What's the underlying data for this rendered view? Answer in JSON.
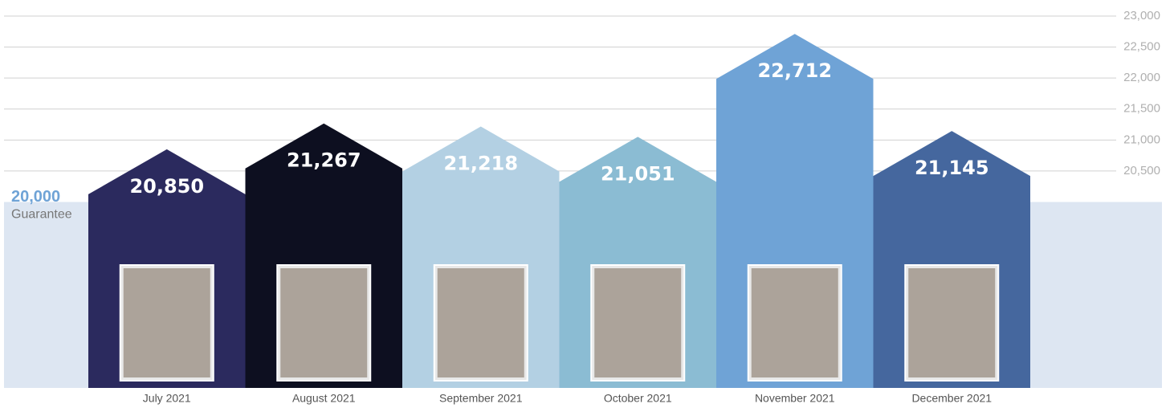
{
  "chart_data": {
    "type": "bar",
    "categories": [
      "July 2021",
      "August 2021",
      "September 2021",
      "October 2021",
      "November 2021",
      "December 2021"
    ],
    "values": [
      20850,
      21267,
      21218,
      21051,
      22712,
      21145
    ],
    "value_labels": [
      "20,850",
      "21,267",
      "21,218",
      "21,051",
      "22,712",
      "21,145"
    ],
    "colors": [
      "#2b2a5e",
      "#0d0f20",
      "#b3d0e3",
      "#8bbcd3",
      "#6fa3d6",
      "#45679e"
    ],
    "ylim": [
      17000,
      23000
    ],
    "yticks": [
      {
        "value": 20500,
        "label": "20,500"
      },
      {
        "value": 21000,
        "label": "21,000"
      },
      {
        "value": 21500,
        "label": "21,500"
      },
      {
        "value": 22000,
        "label": "22,000"
      },
      {
        "value": 22500,
        "label": "22,500"
      },
      {
        "value": 23000,
        "label": "23,000"
      }
    ],
    "grid": true,
    "guarantee": {
      "value": 20000,
      "label": "20,000",
      "text": "Guarantee",
      "color": "#dde6f2",
      "label_color": "#6fa3d6"
    }
  }
}
